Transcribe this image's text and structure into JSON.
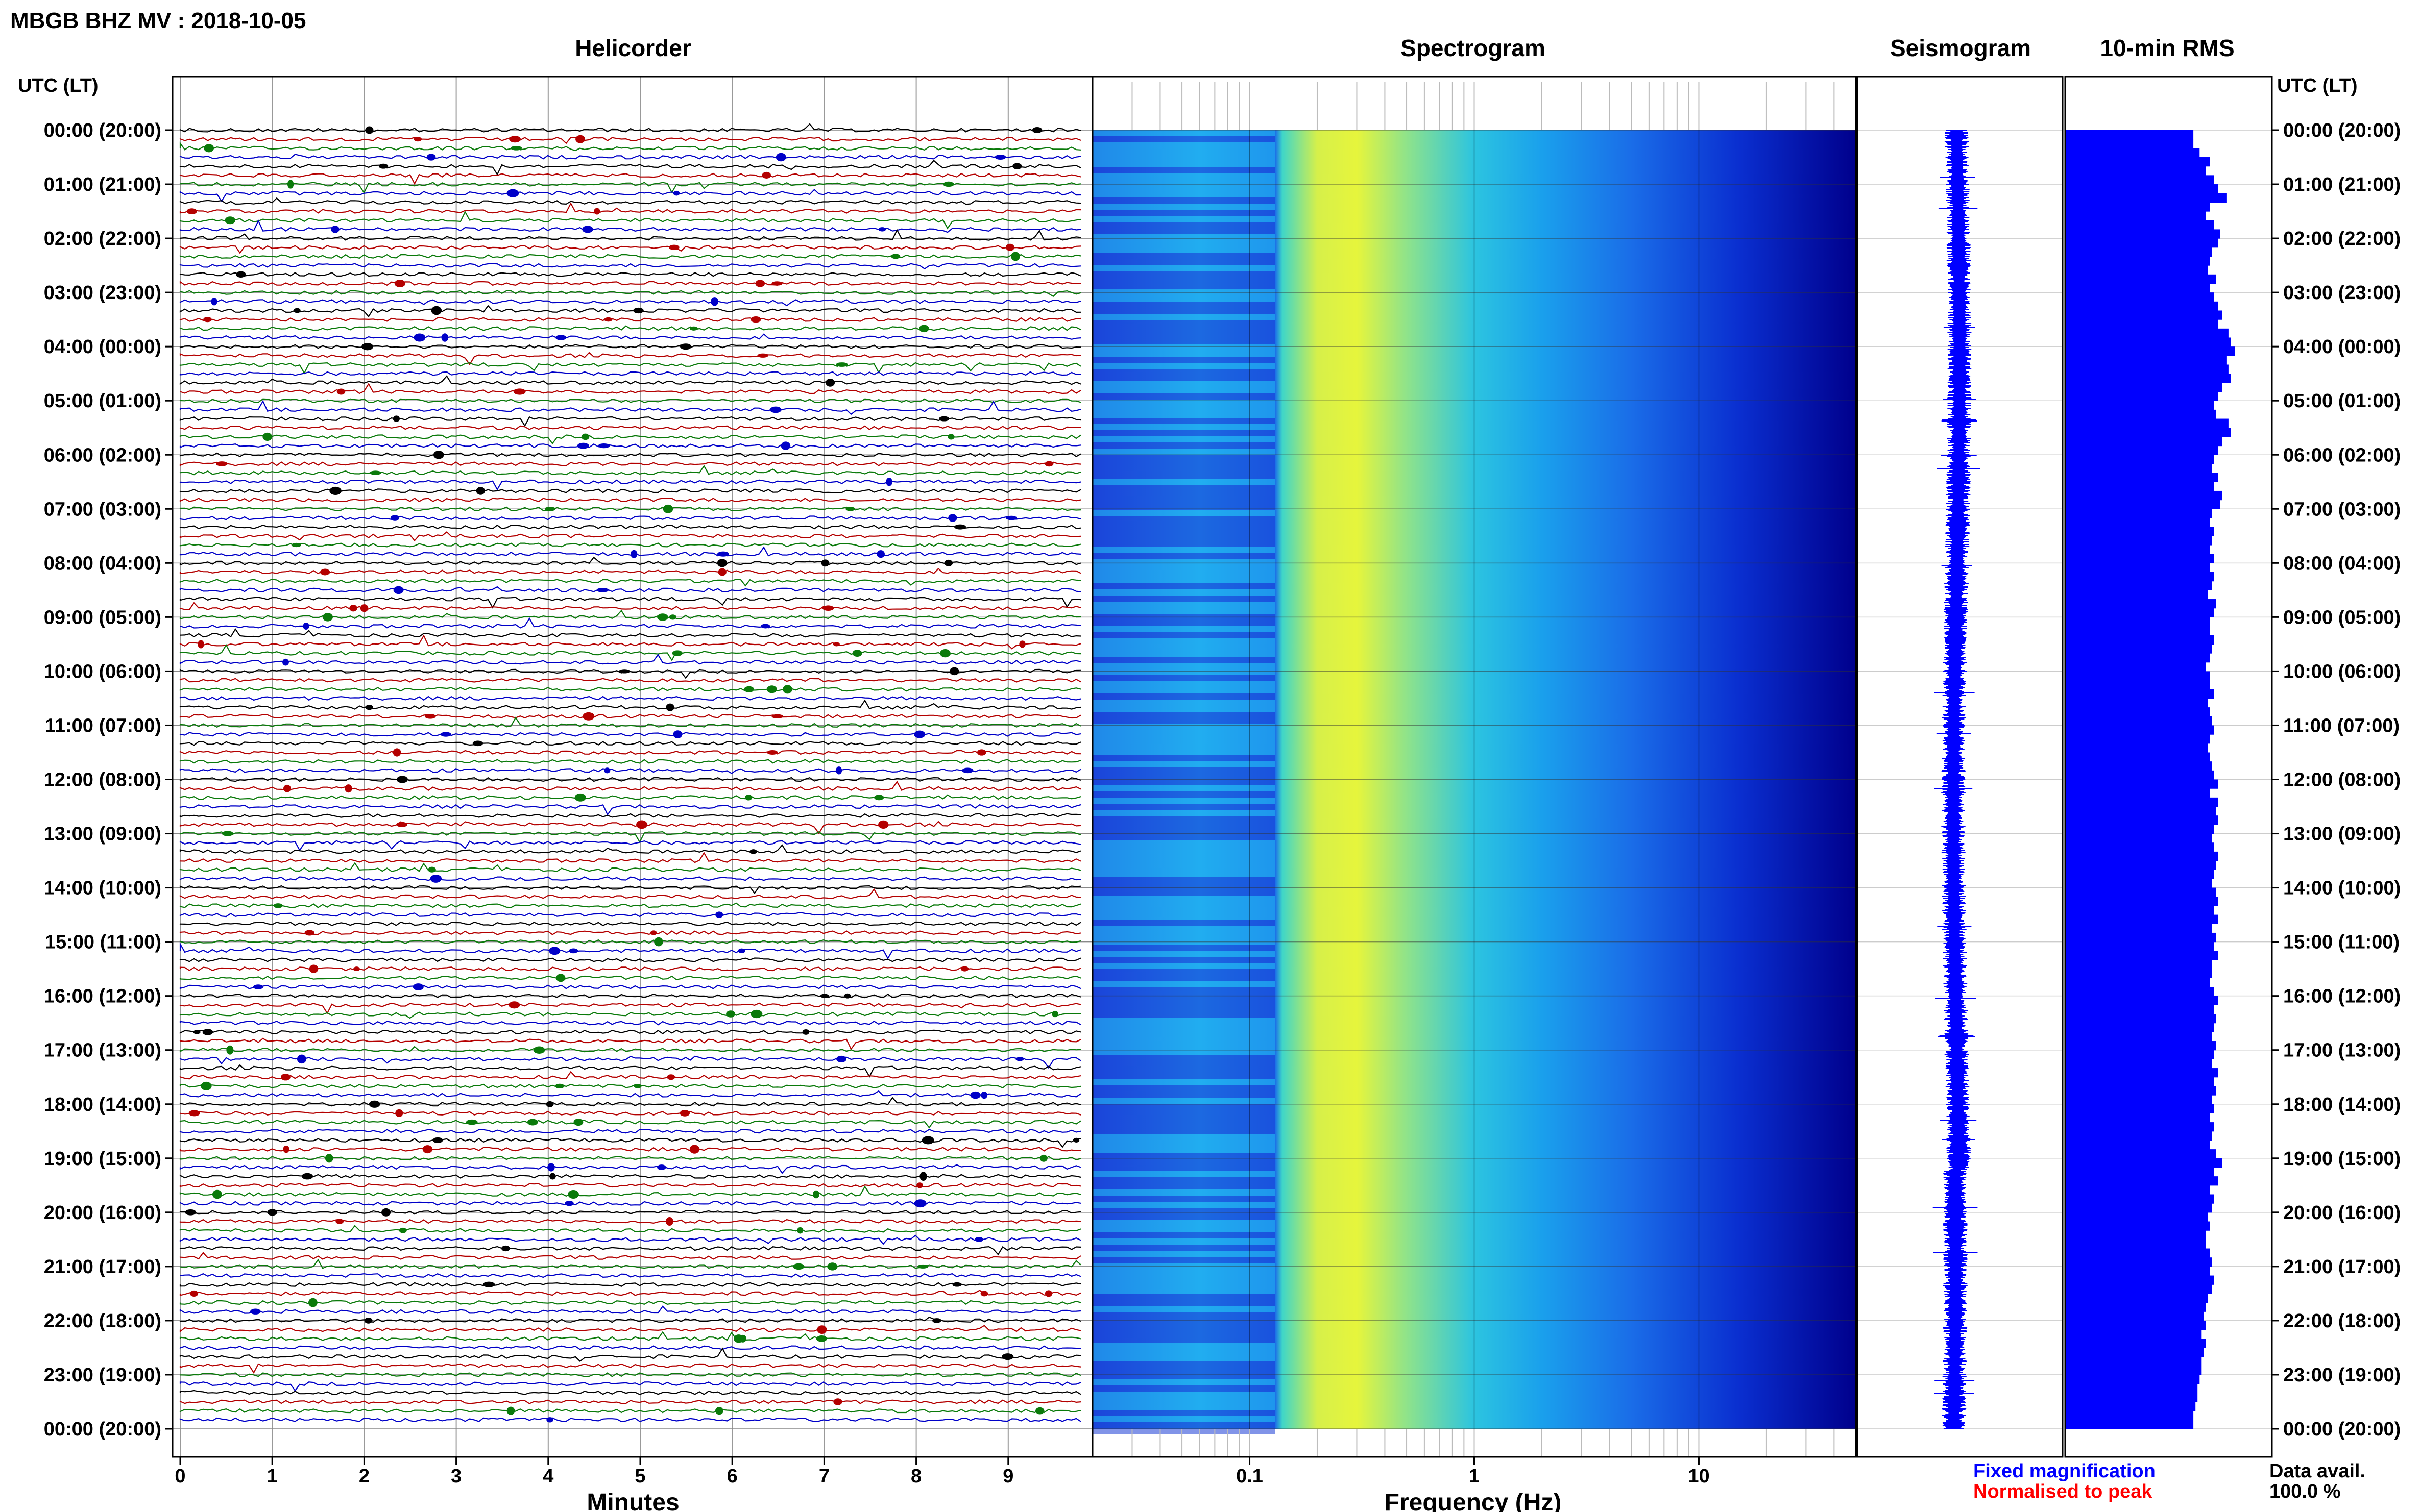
{
  "header": {
    "title": "MBGB BHZ MV : 2018-10-05",
    "utc_label": "UTC (LT)"
  },
  "panels": {
    "helicorder": "Helicorder",
    "spectrogram": "Spectrogram",
    "seismogram": "Seismogram",
    "rms": "10-min RMS"
  },
  "footer": {
    "xlabel_helicorder": "Minutes",
    "xlabel_spectrogram": "Frequency (Hz)",
    "legend_fixed": "Fixed magnification",
    "legend_normalised": "Normalised to peak",
    "data_avail_label": "Data avail.",
    "data_avail_value": "100.0 %"
  },
  "colors": {
    "trace_cycle": [
      "#000000",
      "#b40000",
      "#0a7a0a",
      "#0000c8"
    ],
    "legend_fixed": "#0000ff",
    "legend_normalised": "#ff0000",
    "spectrogram_low": "#1a3cd6",
    "spectrogram_peak": "#e6f53c",
    "spectrogram_high": "#00008c",
    "seismogram": "#0000ff",
    "rms_bars": "#0000ff"
  },
  "chart_data": {
    "type": "heatmap",
    "time_axis": {
      "ticks": [
        "00:00 (20:00)",
        "01:00 (21:00)",
        "02:00 (22:00)",
        "03:00 (23:00)",
        "04:00 (00:00)",
        "05:00 (01:00)",
        "06:00 (02:00)",
        "07:00 (03:00)",
        "08:00 (04:00)",
        "09:00 (05:00)",
        "10:00 (06:00)",
        "11:00 (07:00)",
        "12:00 (08:00)",
        "13:00 (09:00)",
        "14:00 (10:00)",
        "15:00 (11:00)",
        "16:00 (12:00)",
        "17:00 (13:00)",
        "18:00 (14:00)",
        "19:00 (15:00)",
        "20:00 (16:00)",
        "21:00 (17:00)",
        "22:00 (18:00)",
        "23:00 (19:00)",
        "00:00 (20:00)"
      ]
    },
    "helicorder": {
      "x_ticks": [
        "0",
        "1",
        "2",
        "3",
        "4",
        "5",
        "6",
        "7",
        "8",
        "9"
      ],
      "xlim": [
        0,
        10
      ],
      "lines_per_hour": 6,
      "minutes_per_line": 10
    },
    "spectrogram": {
      "x_scale": "log",
      "xlim": [
        0.02,
        50
      ],
      "x_ticks": [
        {
          "value": 0.1,
          "label": "0.1"
        },
        {
          "value": 1,
          "label": "1"
        },
        {
          "value": 10,
          "label": "10"
        }
      ],
      "low_band_hz": [
        0.02,
        0.13
      ],
      "peak_band_hz": [
        0.15,
        0.5
      ],
      "dark_band_start_hz": 15
    },
    "rms": {
      "bars_per_hour": 6,
      "xlim": [
        0,
        1
      ],
      "values": [
        0.62,
        0.62,
        0.65,
        0.7,
        0.68,
        0.72,
        0.74,
        0.78,
        0.7,
        0.68,
        0.72,
        0.75,
        0.74,
        0.71,
        0.7,
        0.69,
        0.73,
        0.7,
        0.72,
        0.74,
        0.76,
        0.74,
        0.79,
        0.8,
        0.82,
        0.78,
        0.79,
        0.8,
        0.76,
        0.74,
        0.72,
        0.73,
        0.79,
        0.8,
        0.76,
        0.74,
        0.72,
        0.71,
        0.74,
        0.72,
        0.76,
        0.75,
        0.71,
        0.7,
        0.72,
        0.71,
        0.7,
        0.72,
        0.7,
        0.72,
        0.71,
        0.69,
        0.73,
        0.72,
        0.7,
        0.7,
        0.72,
        0.71,
        0.7,
        0.68,
        0.7,
        0.7,
        0.72,
        0.69,
        0.7,
        0.71,
        0.72,
        0.7,
        0.69,
        0.7,
        0.71,
        0.72,
        0.74,
        0.7,
        0.74,
        0.73,
        0.74,
        0.72,
        0.71,
        0.72,
        0.74,
        0.73,
        0.72,
        0.71,
        0.73,
        0.74,
        0.72,
        0.74,
        0.71,
        0.73,
        0.72,
        0.74,
        0.71,
        0.71,
        0.7,
        0.72,
        0.74,
        0.72,
        0.73,
        0.72,
        0.71,
        0.73,
        0.72,
        0.71,
        0.74,
        0.72,
        0.73,
        0.71,
        0.72,
        0.7,
        0.72,
        0.71,
        0.7,
        0.73,
        0.76,
        0.72,
        0.74,
        0.7,
        0.72,
        0.71,
        0.69,
        0.7,
        0.68,
        0.68,
        0.7,
        0.71,
        0.7,
        0.72,
        0.71,
        0.69,
        0.68,
        0.67,
        0.68,
        0.66,
        0.68,
        0.67,
        0.66,
        0.66,
        0.65,
        0.64,
        0.64,
        0.63,
        0.62,
        0.62
      ]
    }
  }
}
